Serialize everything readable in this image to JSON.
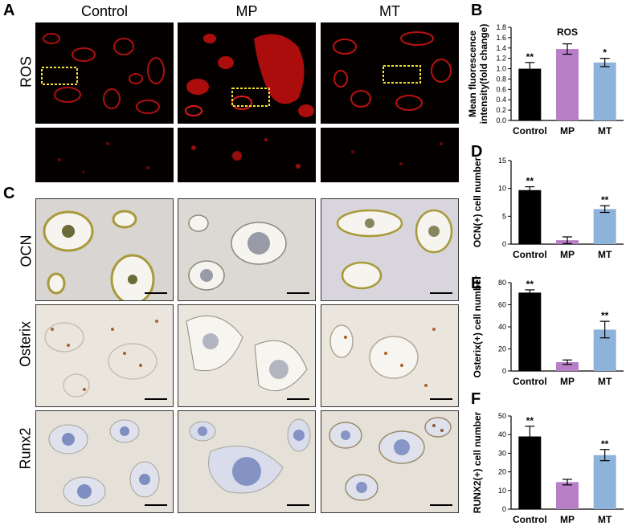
{
  "panels": {
    "A": "A",
    "B": "B",
    "C": "C",
    "D": "D",
    "E": "E",
    "F": "F"
  },
  "columns": [
    "Control",
    "MP",
    "MT"
  ],
  "rows": {
    "ros": "ROS",
    "ocn": "OCN",
    "osterix": "Osterix",
    "runx2": "Runx2"
  },
  "colors": {
    "control": "#000000",
    "mp": "#b77fc6",
    "mt": "#8eb3da",
    "fluor_red": "#e01818",
    "roi_box": "#f2e23a",
    "scale_bar": "#000000"
  },
  "chart_data": [
    {
      "id": "B",
      "type": "bar",
      "title": "ROS",
      "ylabel": "Mean fluorescence intensity(fold change)",
      "categories": [
        "Control",
        "MP",
        "MT"
      ],
      "values": [
        1.0,
        1.38,
        1.12
      ],
      "errors": [
        0.12,
        0.1,
        0.08
      ],
      "significance": [
        "**",
        "",
        "*"
      ],
      "ylim": [
        0,
        1.8
      ],
      "yticks": [
        "0.0",
        "0.2",
        "0.4",
        "0.6",
        "0.8",
        "1.0",
        "1.2",
        "1.4",
        "1.6",
        "1.8"
      ]
    },
    {
      "id": "D",
      "type": "bar",
      "title": "",
      "ylabel": "OCN(+) cell number",
      "categories": [
        "Control",
        "MP",
        "MT"
      ],
      "values": [
        9.7,
        0.7,
        6.3
      ],
      "errors": [
        0.6,
        0.6,
        0.6
      ],
      "significance": [
        "**",
        "",
        "**"
      ],
      "ylim": [
        0,
        15
      ],
      "yticks": [
        "0",
        "5",
        "10",
        "15"
      ]
    },
    {
      "id": "E",
      "type": "bar",
      "title": "",
      "ylabel": "Osterix(+) cell number",
      "categories": [
        "Control",
        "MP",
        "MT"
      ],
      "values": [
        71,
        8,
        37.5
      ],
      "errors": [
        2.5,
        2,
        7.5
      ],
      "significance": [
        "**",
        "",
        "**"
      ],
      "ylim": [
        0,
        80
      ],
      "yticks": [
        "0",
        "20",
        "40",
        "60",
        "80"
      ]
    },
    {
      "id": "F",
      "type": "bar",
      "title": "",
      "ylabel": "RUNX2(+) cell number",
      "categories": [
        "Control",
        "MP",
        "MT"
      ],
      "values": [
        39,
        14.5,
        29
      ],
      "errors": [
        5.5,
        1.5,
        3
      ],
      "significance": [
        "**",
        "",
        "**"
      ],
      "ylim": [
        0,
        50
      ],
      "yticks": [
        "0",
        "10",
        "20",
        "30",
        "40",
        "50"
      ]
    }
  ]
}
